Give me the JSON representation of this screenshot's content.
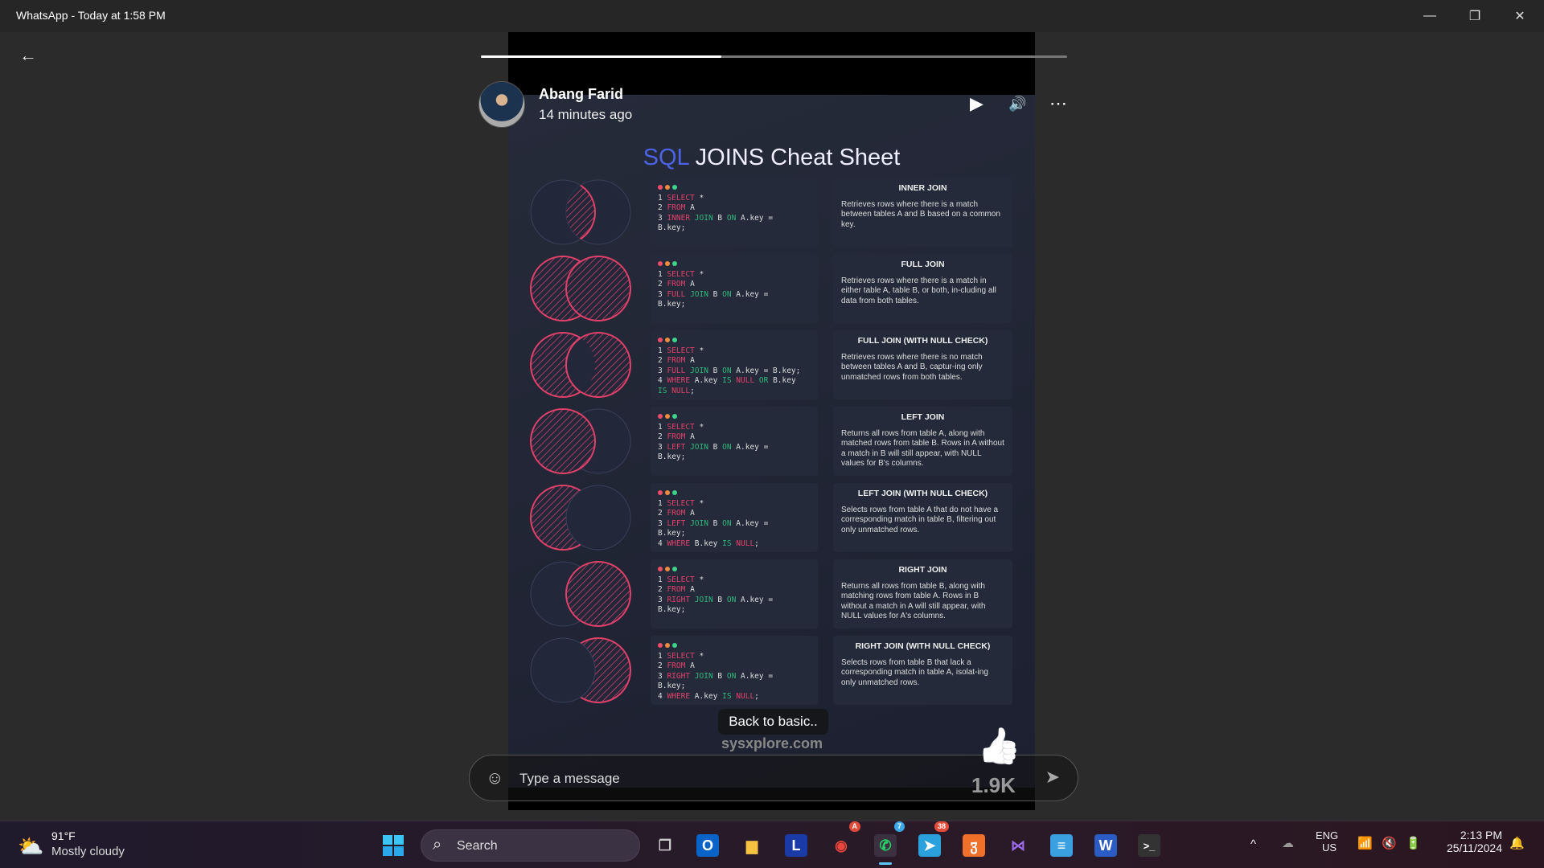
{
  "window": {
    "title": "WhatsApp - Today at 1:58 PM",
    "minimize": "—",
    "restore": "❐",
    "close": "✕"
  },
  "nav": {
    "back": "←"
  },
  "story": {
    "progress": 0.41,
    "author": "Abang Farid",
    "posted": "14 minutes ago",
    "controls": {
      "play": "▶",
      "volume": "🔊",
      "more": "⋯"
    },
    "caption": "Back to basic..",
    "likes": "1.9K",
    "like_icon": "👍",
    "sheet": {
      "title_accent": "SQL",
      "title_rest": " JOINS Cheat Sheet",
      "watermark": "sysxplore.com",
      "colors": {
        "keyword": "#e0406a",
        "join": "#2fb87c",
        "venn": "#e0406a",
        "accent": "#4d63e6"
      },
      "rows": [
        {
          "venn": "inner",
          "heading": "INNER JOIN",
          "text": "Retrieves rows where there is a match between tables A and B based on a common key.",
          "code": [
            [
              [
                "SELECT",
                "k"
              ],
              [
                " *",
                ""
              ]
            ],
            [
              [
                "FROM",
                "k"
              ],
              [
                " A",
                ""
              ]
            ],
            [
              [
                "INNER",
                "k"
              ],
              [
                " JOIN",
                "g"
              ],
              [
                " B ",
                ""
              ],
              [
                "ON",
                "g"
              ],
              [
                " A.key =",
                ""
              ]
            ],
            [
              [
                "  B.key;",
                ""
              ]
            ]
          ]
        },
        {
          "venn": "full",
          "heading": "FULL JOIN",
          "text": "Retrieves rows where there is a match in either table A, table B, or both, in-cluding all data from both tables.",
          "code": [
            [
              [
                "SELECT",
                "k"
              ],
              [
                " *",
                ""
              ]
            ],
            [
              [
                "FROM",
                "k"
              ],
              [
                " A",
                ""
              ]
            ],
            [
              [
                "FULL",
                "k"
              ],
              [
                " JOIN",
                "g"
              ],
              [
                " B ",
                ""
              ],
              [
                "ON",
                "g"
              ],
              [
                " A.key =",
                ""
              ]
            ],
            [
              [
                "  B.key;",
                ""
              ]
            ]
          ]
        },
        {
          "venn": "outer",
          "heading": "FULL JOIN (WITH NULL CHECK)",
          "text": "Retrieves rows where there is no match between tables A and B, captur-ing only unmatched rows from both tables.",
          "code": [
            [
              [
                "SELECT",
                "k"
              ],
              [
                " *",
                ""
              ]
            ],
            [
              [
                "FROM",
                "k"
              ],
              [
                " A",
                ""
              ]
            ],
            [
              [
                "FULL",
                "k"
              ],
              [
                " JOIN",
                "g"
              ],
              [
                " B ",
                ""
              ],
              [
                "ON",
                "g"
              ],
              [
                " A.key = B.key;",
                ""
              ]
            ],
            [
              [
                "WHERE",
                "k"
              ],
              [
                " A.key ",
                ""
              ],
              [
                "IS",
                "g"
              ],
              [
                " NULL",
                "k"
              ],
              [
                " OR",
                "g"
              ],
              [
                " B.key",
                ""
              ]
            ],
            [
              [
                "  IS",
                "g"
              ],
              [
                " NULL",
                "k"
              ],
              [
                ";",
                ""
              ]
            ]
          ]
        },
        {
          "venn": "left",
          "heading": "LEFT JOIN",
          "text": "Returns all rows from table A, along with matched rows from table B. Rows in A without a match in B will still appear, with NULL values for B's columns.",
          "code": [
            [
              [
                "SELECT",
                "k"
              ],
              [
                " *",
                ""
              ]
            ],
            [
              [
                "FROM",
                "k"
              ],
              [
                " A",
                ""
              ]
            ],
            [
              [
                "LEFT",
                "k"
              ],
              [
                " JOIN",
                "g"
              ],
              [
                " B ",
                ""
              ],
              [
                "ON",
                "g"
              ],
              [
                " A.key =",
                ""
              ]
            ],
            [
              [
                "  B.key;",
                ""
              ]
            ]
          ]
        },
        {
          "venn": "leftonly",
          "heading": "LEFT JOIN (WITH NULL CHECK)",
          "text": "Selects rows from table A that do not have a corresponding match in table B, filtering out only unmatched rows.",
          "code": [
            [
              [
                "SELECT",
                "k"
              ],
              [
                " *",
                ""
              ]
            ],
            [
              [
                "FROM",
                "k"
              ],
              [
                " A",
                ""
              ]
            ],
            [
              [
                "LEFT",
                "k"
              ],
              [
                " JOIN",
                "g"
              ],
              [
                " B ",
                ""
              ],
              [
                "ON",
                "g"
              ],
              [
                " A.key =",
                ""
              ]
            ],
            [
              [
                "  B.key;",
                ""
              ]
            ],
            [
              [
                "WHERE",
                "k"
              ],
              [
                " B.key ",
                ""
              ],
              [
                "IS",
                "g"
              ],
              [
                " NULL",
                "k"
              ],
              [
                ";",
                ""
              ]
            ]
          ]
        },
        {
          "venn": "right",
          "heading": "RIGHT JOIN",
          "text": "Returns all rows from table B, along with matching rows from table A. Rows in B without a match in A will still appear, with NULL values for A's columns.",
          "code": [
            [
              [
                "SELECT",
                "k"
              ],
              [
                " *",
                ""
              ]
            ],
            [
              [
                "FROM",
                "k"
              ],
              [
                " A",
                ""
              ]
            ],
            [
              [
                "RIGHT",
                "k"
              ],
              [
                " JOIN",
                "g"
              ],
              [
                " B ",
                ""
              ],
              [
                "ON",
                "g"
              ],
              [
                " A.key =",
                ""
              ]
            ],
            [
              [
                "  B.key;",
                ""
              ]
            ]
          ]
        },
        {
          "venn": "rightonly",
          "heading": "RIGHT JOIN (WITH NULL CHECK)",
          "text": "Selects rows from table B that lack a corresponding match in table A, isolat-ing only unmatched rows.",
          "code": [
            [
              [
                "SELECT",
                "k"
              ],
              [
                " *",
                ""
              ]
            ],
            [
              [
                "FROM",
                "k"
              ],
              [
                " A",
                ""
              ]
            ],
            [
              [
                "RIGHT",
                "k"
              ],
              [
                " JOIN",
                "g"
              ],
              [
                " B ",
                ""
              ],
              [
                "ON",
                "g"
              ],
              [
                " A.key =",
                ""
              ]
            ],
            [
              [
                "  B.key;",
                ""
              ]
            ],
            [
              [
                "WHERE",
                "k"
              ],
              [
                " A.key ",
                ""
              ],
              [
                "IS",
                "g"
              ],
              [
                " NULL",
                "k"
              ],
              [
                ";",
                ""
              ]
            ]
          ]
        }
      ]
    }
  },
  "composer": {
    "placeholder": "Type a message",
    "emoji_icon": "☺",
    "send_icon": "➤"
  },
  "taskbar": {
    "weather": {
      "temp": "91°F",
      "condition": "Mostly cloudy"
    },
    "search_label": "Search",
    "apps": [
      {
        "name": "task-view",
        "glyph": "❐",
        "color": "#ccc",
        "bg": "transparent"
      },
      {
        "name": "outlook",
        "glyph": "O",
        "color": "#fff",
        "bg": "#0a64c8"
      },
      {
        "name": "file-explorer",
        "glyph": "▆",
        "color": "#f5c242",
        "bg": "transparent"
      },
      {
        "name": "l-app",
        "glyph": "L",
        "color": "#fff",
        "bg": "#1a3aa8"
      },
      {
        "name": "chrome",
        "glyph": "◉",
        "color": "#e8453c",
        "bg": "transparent",
        "badge": "A"
      },
      {
        "name": "whatsapp",
        "glyph": "✆",
        "color": "#25d366",
        "bg": "#3a3040",
        "badge": "7"
      },
      {
        "name": "telegram",
        "glyph": "➤",
        "color": "#fff",
        "bg": "#2aa0dc",
        "badge": "38"
      },
      {
        "name": "xampp",
        "glyph": "ჳ",
        "color": "#fff",
        "bg": "#f0702a"
      },
      {
        "name": "visual-studio",
        "glyph": "⋈",
        "color": "#9a6ae8",
        "bg": "transparent"
      },
      {
        "name": "notepad",
        "glyph": "≡",
        "color": "#fff",
        "bg": "#3aa0e0"
      },
      {
        "name": "word",
        "glyph": "W",
        "color": "#fff",
        "bg": "#2b5cc4"
      },
      {
        "name": "terminal",
        "glyph": ">_",
        "color": "#fff",
        "bg": "#333"
      }
    ],
    "tray": {
      "chevron": "^",
      "lang": "ENG",
      "region": "US",
      "time": "2:13 PM",
      "date": "25/11/2024"
    }
  }
}
